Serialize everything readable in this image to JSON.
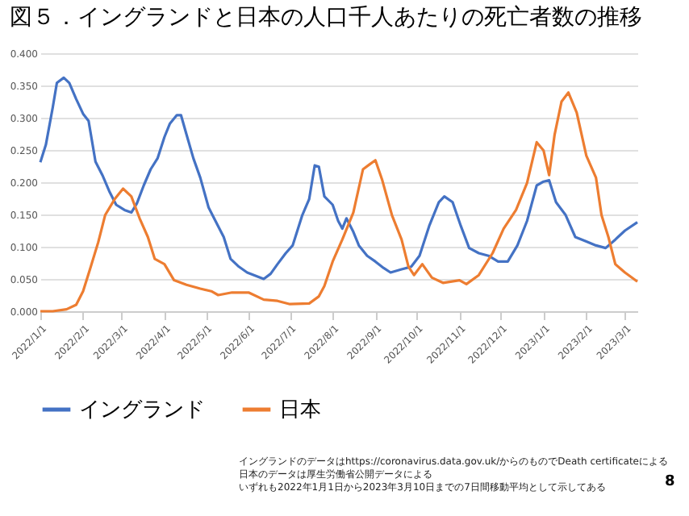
{
  "chart_data": {
    "type": "line",
    "title": "図５．イングランドと日本の人口千人あたりの死亡者数の推移",
    "xlim": [
      "2022-01-01",
      "2023-03-10"
    ],
    "xticks": [
      {
        "value": "2022-01-01",
        "label": "2022/1/1"
      },
      {
        "value": "2022-02-01",
        "label": "2022/2/1"
      },
      {
        "value": "2022-03-01",
        "label": "2022/3/1"
      },
      {
        "value": "2022-04-01",
        "label": "2022/4/1"
      },
      {
        "value": "2022-05-01",
        "label": "2022/5/1"
      },
      {
        "value": "2022-06-01",
        "label": "2022/6/1"
      },
      {
        "value": "2022-07-01",
        "label": "2022/7/1"
      },
      {
        "value": "2022-08-01",
        "label": "2022/8/1"
      },
      {
        "value": "2022-09-01",
        "label": "2022/9/1"
      },
      {
        "value": "2022-10-01",
        "label": "2022/10/1"
      },
      {
        "value": "2022-11-01",
        "label": "2022/11/1"
      },
      {
        "value": "2022-12-01",
        "label": "2022/12/1"
      },
      {
        "value": "2023-01-01",
        "label": "2023/1/1"
      },
      {
        "value": "2023-02-01",
        "label": "2023/2/1"
      },
      {
        "value": "2023-03-01",
        "label": "2023/3/1"
      }
    ],
    "ylim": [
      0,
      0.4
    ],
    "yticks": [
      {
        "value": 0,
        "label": "0.000"
      },
      {
        "value": 0.05,
        "label": "0.050"
      },
      {
        "value": 0.1,
        "label": "0.100"
      },
      {
        "value": 0.15,
        "label": "0.150"
      },
      {
        "value": 0.2,
        "label": "0.200"
      },
      {
        "value": 0.25,
        "label": "0.250"
      },
      {
        "value": 0.3,
        "label": "0.300"
      },
      {
        "value": 0.35,
        "label": "0.350"
      },
      {
        "value": 0.4,
        "label": "0.400"
      }
    ],
    "grid": "y",
    "legend": "bottom",
    "series": [
      {
        "name": "イングランド",
        "color": "#4472c4",
        "x": [
          "2022-01-01",
          "2022-01-05",
          "2022-01-10",
          "2022-01-13",
          "2022-01-18",
          "2022-01-22",
          "2022-01-27",
          "2022-02-01",
          "2022-02-05",
          "2022-02-10",
          "2022-02-15",
          "2022-02-20",
          "2022-02-25",
          "2022-03-03",
          "2022-03-08",
          "2022-03-12",
          "2022-03-17",
          "2022-03-22",
          "2022-03-27",
          "2022-04-01",
          "2022-04-05",
          "2022-04-10",
          "2022-04-13",
          "2022-04-17",
          "2022-04-22",
          "2022-04-27",
          "2022-05-03",
          "2022-05-08",
          "2022-05-14",
          "2022-05-19",
          "2022-05-25",
          "2022-05-31",
          "2022-06-06",
          "2022-06-12",
          "2022-06-17",
          "2022-06-22",
          "2022-06-28",
          "2022-07-03",
          "2022-07-10",
          "2022-07-15",
          "2022-07-19",
          "2022-07-22",
          "2022-07-26",
          "2022-08-01",
          "2022-08-05",
          "2022-08-08",
          "2022-08-11",
          "2022-08-16",
          "2022-08-20",
          "2022-08-26",
          "2022-09-01",
          "2022-09-07",
          "2022-09-12",
          "2022-09-20",
          "2022-09-27",
          "2022-10-03",
          "2022-10-10",
          "2022-10-17",
          "2022-10-21",
          "2022-10-27",
          "2022-11-02",
          "2022-11-08",
          "2022-11-15",
          "2022-11-22",
          "2022-11-29",
          "2022-12-06",
          "2022-12-13",
          "2022-12-20",
          "2022-12-27",
          "2023-01-01",
          "2023-01-05",
          "2023-01-10",
          "2023-01-17",
          "2023-01-24",
          "2023-02-01",
          "2023-02-08",
          "2023-02-15",
          "2023-02-22",
          "2023-03-01",
          "2023-03-10"
        ],
        "values": [
          0.231,
          0.258,
          0.316,
          0.354,
          0.362,
          0.354,
          0.329,
          0.306,
          0.295,
          0.232,
          0.211,
          0.186,
          0.165,
          0.157,
          0.153,
          0.167,
          0.195,
          0.22,
          0.237,
          0.27,
          0.291,
          0.304,
          0.304,
          0.274,
          0.237,
          0.207,
          0.161,
          0.14,
          0.115,
          0.081,
          0.069,
          0.06,
          0.055,
          0.05,
          0.058,
          0.073,
          0.09,
          0.102,
          0.149,
          0.174,
          0.226,
          0.224,
          0.178,
          0.165,
          0.14,
          0.128,
          0.144,
          0.123,
          0.102,
          0.086,
          0.077,
          0.067,
          0.06,
          0.065,
          0.069,
          0.086,
          0.132,
          0.169,
          0.178,
          0.169,
          0.132,
          0.098,
          0.09,
          0.086,
          0.077,
          0.077,
          0.102,
          0.14,
          0.195,
          0.201,
          0.203,
          0.169,
          0.149,
          0.115,
          0.108,
          0.102,
          0.098,
          0.111,
          0.125,
          0.138
        ]
      },
      {
        "name": "日本",
        "color": "#ed7d31",
        "x": [
          "2022-01-01",
          "2022-01-10",
          "2022-01-20",
          "2022-01-27",
          "2022-02-01",
          "2022-02-06",
          "2022-02-12",
          "2022-02-17",
          "2022-02-24",
          "2022-03-02",
          "2022-03-08",
          "2022-03-14",
          "2022-03-20",
          "2022-03-25",
          "2022-04-01",
          "2022-04-08",
          "2022-04-17",
          "2022-04-27",
          "2022-05-05",
          "2022-05-10",
          "2022-05-20",
          "2022-06-01",
          "2022-06-12",
          "2022-06-22",
          "2022-07-01",
          "2022-07-15",
          "2022-07-22",
          "2022-07-26",
          "2022-08-01",
          "2022-08-08",
          "2022-08-16",
          "2022-08-23",
          "2022-08-28",
          "2022-09-01",
          "2022-09-06",
          "2022-09-13",
          "2022-09-20",
          "2022-09-25",
          "2022-09-29",
          "2022-10-05",
          "2022-10-12",
          "2022-10-20",
          "2022-11-01",
          "2022-11-06",
          "2022-11-15",
          "2022-11-25",
          "2022-12-03",
          "2022-12-12",
          "2022-12-20",
          "2022-12-27",
          "2023-01-01",
          "2023-01-05",
          "2023-01-09",
          "2023-01-14",
          "2023-01-19",
          "2023-01-25",
          "2023-02-01",
          "2023-02-08",
          "2023-02-12",
          "2023-02-17",
          "2023-02-22",
          "2023-03-01",
          "2023-03-10"
        ],
        "values": [
          0.0,
          0.0,
          0.003,
          0.01,
          0.031,
          0.065,
          0.107,
          0.149,
          0.174,
          0.19,
          0.178,
          0.144,
          0.115,
          0.081,
          0.073,
          0.048,
          0.041,
          0.035,
          0.031,
          0.025,
          0.029,
          0.029,
          0.018,
          0.016,
          0.011,
          0.012,
          0.023,
          0.039,
          0.077,
          0.111,
          0.153,
          0.22,
          0.228,
          0.234,
          0.203,
          0.149,
          0.111,
          0.069,
          0.056,
          0.073,
          0.052,
          0.044,
          0.048,
          0.042,
          0.056,
          0.09,
          0.128,
          0.157,
          0.199,
          0.262,
          0.249,
          0.211,
          0.274,
          0.325,
          0.339,
          0.308,
          0.241,
          0.207,
          0.149,
          0.115,
          0.073,
          0.06,
          0.046
        ]
      }
    ],
    "annotations": [
      "イングランドのデータはhttps://coronavirus.data.gov.uk/からのものでDeath certificateによる",
      "日本のデータは厚生労働省公開データによる",
      "いずれも2022年1月1日から2023年3月10日までの7日間移動平均として示してある",
      "8"
    ]
  }
}
